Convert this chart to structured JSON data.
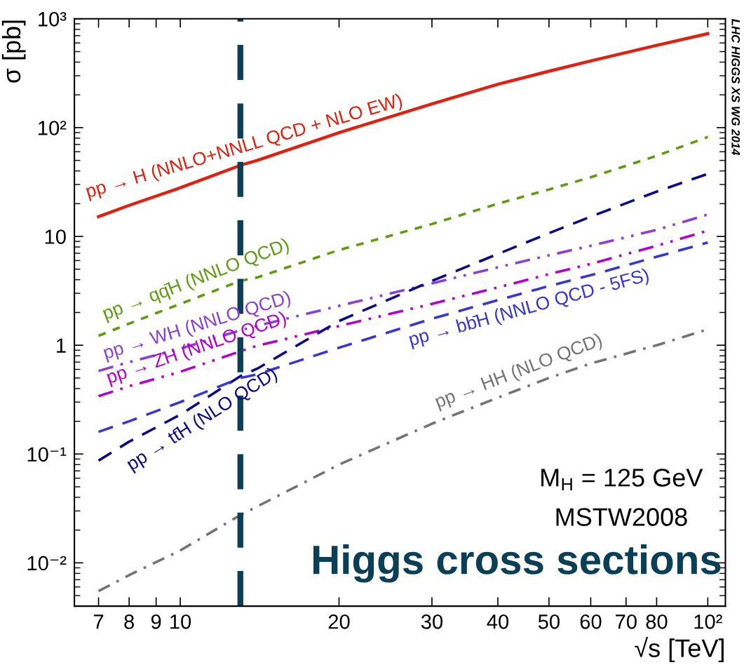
{
  "chart_data": {
    "type": "line",
    "title": "Higgs cross sections",
    "xlabel": "√s [TeV]",
    "ylabel": "σ [pb]",
    "x": [
      7,
      8,
      10,
      13,
      14,
      20,
      30,
      40,
      50,
      60,
      80,
      100
    ],
    "series": [
      {
        "name": "pp → H (NNLO+NNLL QCD + NLO EW)",
        "color": "#e3200f",
        "line_style": "solid",
        "values": [
          15.2,
          19.3,
          28,
          45,
          50,
          90,
          165,
          250,
          330,
          410,
          570,
          730
        ]
      },
      {
        "name": "pp → qq̄H (NNLO QCD)",
        "color": "#5e9a12",
        "line_style": "dotted",
        "values": [
          1.22,
          1.58,
          2.4,
          3.9,
          4.2,
          7.5,
          13,
          20,
          27,
          35,
          55,
          82
        ]
      },
      {
        "name": "pp → WH (NNLO QCD)",
        "color": "#8a3fd6",
        "line_style": "dashdotdot",
        "values": [
          0.58,
          0.7,
          0.93,
          1.37,
          1.51,
          2.3,
          3.7,
          5.2,
          6.7,
          8.2,
          11.5,
          15.9
        ]
      },
      {
        "name": "pp → ZH (NNLO QCD)",
        "color": "#b400d0",
        "line_style": "dashdotdot",
        "values": [
          0.34,
          0.42,
          0.57,
          0.88,
          0.99,
          1.5,
          2.4,
          3.4,
          4.5,
          5.6,
          8.2,
          11.3
        ]
      },
      {
        "name": "pp → tt̄H (NLO QCD)",
        "color": "#0a0a8c",
        "line_style": "dashed",
        "values": [
          0.087,
          0.13,
          0.23,
          0.52,
          0.61,
          1.67,
          3.9,
          6.9,
          10.7,
          15.2,
          25.8,
          37.6
        ]
      },
      {
        "name": "pp → bb̄H (NNLO QCD - 5FS)",
        "color": "#3535d8",
        "line_style": "dashed",
        "values": [
          0.16,
          0.2,
          0.3,
          0.5,
          0.54,
          0.95,
          1.75,
          2.6,
          3.5,
          4.4,
          6.5,
          8.8
        ]
      },
      {
        "name": "pp → HH (NLO QCD)",
        "color": "#737373",
        "line_style": "dashdot",
        "values": [
          0.0055,
          0.0077,
          0.013,
          0.0275,
          0.033,
          0.08,
          0.19,
          0.33,
          0.5,
          0.68,
          1.0,
          1.4
        ]
      }
    ],
    "log": "xy",
    "xlim": [
      6.3,
      108
    ],
    "ylim": [
      0.004,
      1000
    ],
    "xticks": [
      7,
      8,
      9,
      10,
      20,
      30,
      40,
      50,
      60,
      70,
      80,
      {
        "value": 100,
        "label": "10²"
      }
    ],
    "yticks": [
      {
        "value": 0.01,
        "label": "10⁻²"
      },
      {
        "value": 0.1,
        "label": "10⁻¹"
      },
      1,
      10,
      {
        "value": 100,
        "label": "10²"
      },
      {
        "value": 1000,
        "label": "10³"
      }
    ],
    "ref_lines": [
      {
        "axis": "x",
        "value": 13,
        "color": "#0b3f58",
        "line_style": "dashed"
      }
    ],
    "annotations": [
      "M$_{H}$ = 125 GeV",
      "MSTW2008",
      "LHC HIGGS XS WG 2014"
    ],
    "grid": false,
    "legend": false
  }
}
